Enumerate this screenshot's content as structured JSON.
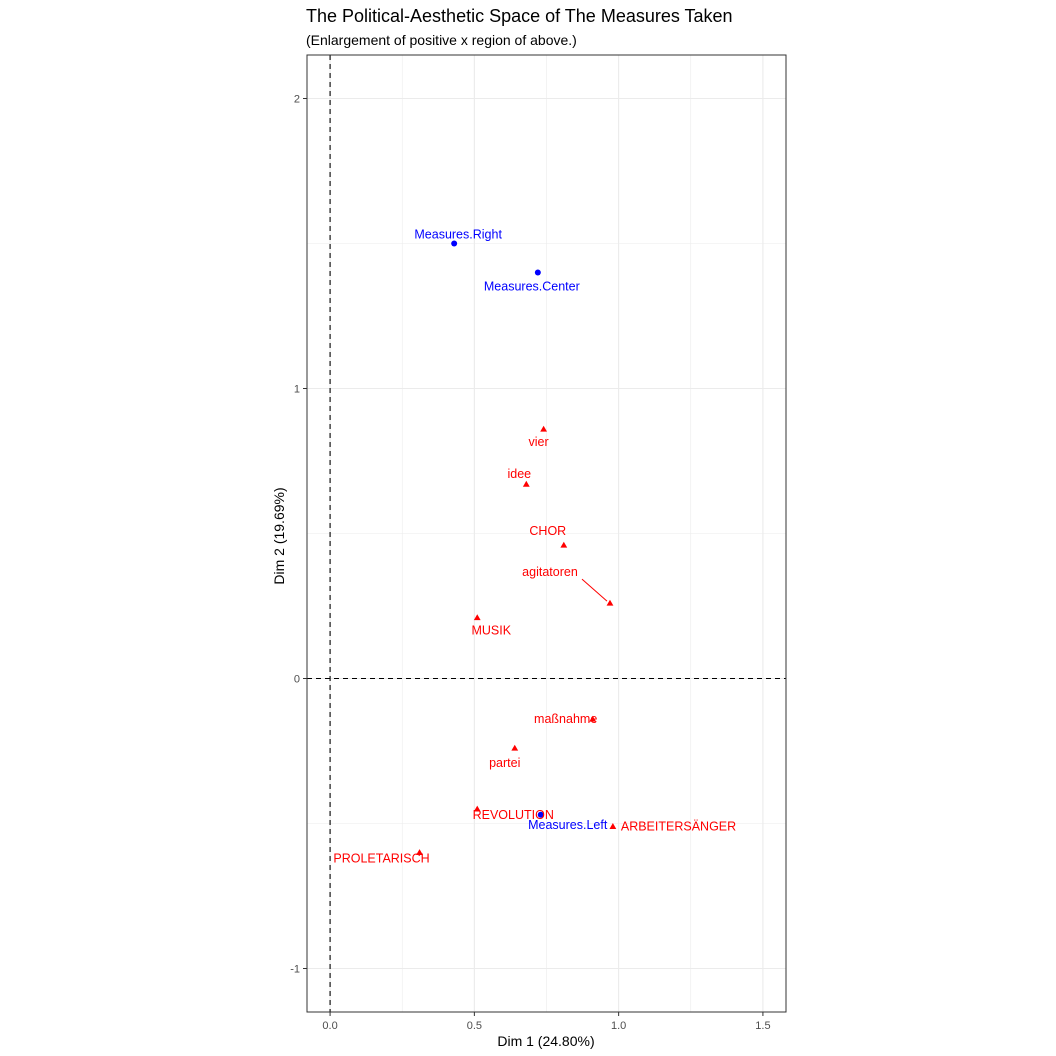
{
  "chart_data": {
    "type": "scatter",
    "title": "The Political-Aesthetic Space of The Measures Taken",
    "subtitle": "(Enlargement of positive x region of above.)",
    "xlabel": "Dim 1 (24.80%)",
    "ylabel": "Dim 2 (19.69%)",
    "xlim": [
      -0.08,
      1.58
    ],
    "ylim": [
      -1.15,
      2.15
    ],
    "x_ticks": [
      0.0,
      0.5,
      1.0,
      1.5
    ],
    "x_tick_labels": [
      "0.0",
      "0.5",
      "1.0",
      "1.5"
    ],
    "y_ticks": [
      -1,
      0,
      1,
      2
    ],
    "y_tick_labels": [
      "-1",
      "0",
      "1",
      "2"
    ],
    "grid": true,
    "reference_lines": {
      "x": 0,
      "y": 0,
      "style": "dashed"
    },
    "colors": {
      "variables": "#ff0000",
      "documents": "#0000ff"
    },
    "series": [
      {
        "marker": "triangle",
        "color": "#ff0000",
        "points": [
          {
            "label": "vier",
            "x": 0.74,
            "y": 0.86
          },
          {
            "label": "idee",
            "x": 0.68,
            "y": 0.67
          },
          {
            "label": "CHOR",
            "x": 0.81,
            "y": 0.46
          },
          {
            "label": "agitatoren",
            "x": 0.97,
            "y": 0.26
          },
          {
            "label": "MUSIK",
            "x": 0.51,
            "y": 0.21
          },
          {
            "label": "maßnahme",
            "x": 0.91,
            "y": -0.14
          },
          {
            "label": "partei",
            "x": 0.64,
            "y": -0.24
          },
          {
            "label": "REVOLUTION",
            "x": 0.51,
            "y": -0.45
          },
          {
            "label": "ARBEITERSÄNGER",
            "x": 0.98,
            "y": -0.51
          },
          {
            "label": "PROLETARISCH",
            "x": 0.31,
            "y": -0.6
          }
        ]
      },
      {
        "marker": "circle",
        "color": "#0000ff",
        "points": [
          {
            "label": "Measures.Right",
            "x": 0.43,
            "y": 1.5
          },
          {
            "label": "Measures.Center",
            "x": 0.72,
            "y": 1.4
          },
          {
            "label": "Measures.Left",
            "x": 0.73,
            "y": -0.47
          }
        ]
      }
    ]
  }
}
